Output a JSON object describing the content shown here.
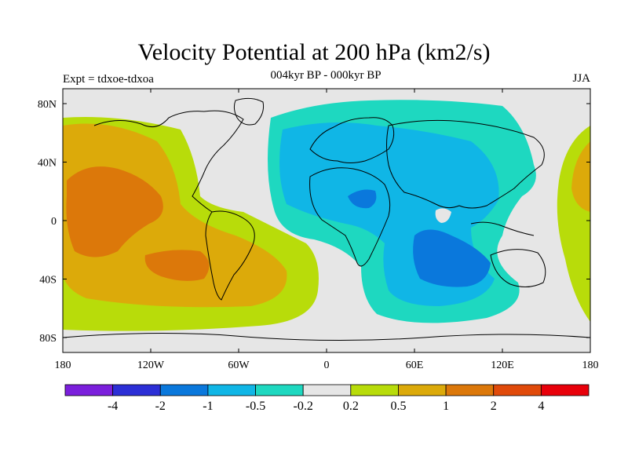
{
  "title": "Velocity Potential at 200 hPa (km2/s)",
  "experiment": "Expt = tdxoe-tdxoa",
  "period": "004kyr BP - 000kyr BP",
  "season": "JJA",
  "y_ticks": [
    "80N",
    "40N",
    "0",
    "40S",
    "80S"
  ],
  "x_ticks": [
    "180",
    "120W",
    "60W",
    "0",
    "60E",
    "120E",
    "180"
  ],
  "colorbar": {
    "colors": [
      "#7b1fdc",
      "#2c2fd6",
      "#0a78dc",
      "#10b6e6",
      "#1ed8c0",
      "#e6e6e6",
      "#b8dc0a",
      "#dcaa0a",
      "#dc780a",
      "#e04a0a",
      "#e8000a"
    ],
    "labels": [
      "-4",
      "-2",
      "-1",
      "-0.5",
      "-0.2",
      "0.2",
      "0.5",
      "1",
      "2",
      "4"
    ]
  },
  "colors": {
    "neutral": "#e6e6e6",
    "pos_weak": "#b8dc0a",
    "pos_mid": "#dcaa0a",
    "pos_strong": "#dc780a",
    "neg_weak": "#1ed8c0",
    "neg_mid": "#10b6e6",
    "neg_strong": "#0a78dc"
  }
}
